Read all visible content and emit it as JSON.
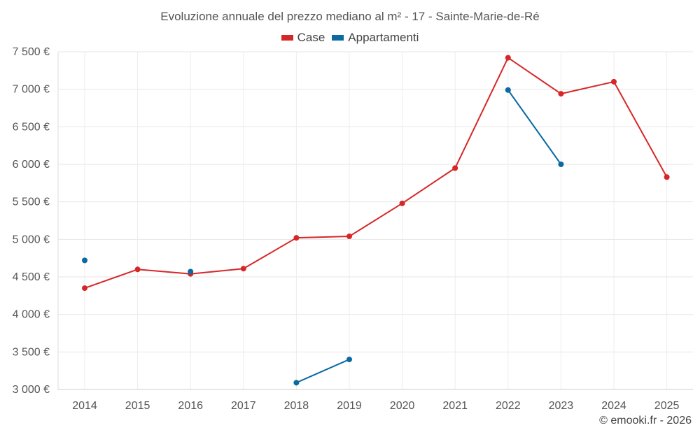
{
  "chart_data": {
    "type": "line",
    "title": "Evoluzione annuale del prezzo mediano al m² - 17 - Sainte-Marie-de-Ré",
    "categories": [
      "2014",
      "2015",
      "2016",
      "2017",
      "2018",
      "2019",
      "2020",
      "2021",
      "2022",
      "2023",
      "2024",
      "2025"
    ],
    "y_ticks": [
      3000,
      3500,
      4000,
      4500,
      5000,
      5500,
      6000,
      6500,
      7000,
      7500
    ],
    "y_tick_labels": [
      "3 000 €",
      "3 500 €",
      "4 000 €",
      "4 500 €",
      "5 000 €",
      "5 500 €",
      "6 000 €",
      "6 500 €",
      "7 000 €",
      "7 500 €"
    ],
    "ylim": [
      3000,
      7500
    ],
    "grid": true,
    "legend_position": "top-center",
    "series": [
      {
        "name": "Case",
        "color": "#d62728",
        "values": [
          4350,
          4600,
          4540,
          4610,
          5020,
          5040,
          5480,
          5950,
          7420,
          6940,
          7100,
          5830
        ]
      },
      {
        "name": "Appartamenti",
        "color": "#0a6aa1",
        "values": [
          4720,
          null,
          4570,
          null,
          3090,
          3400,
          null,
          null,
          6990,
          6000,
          null,
          null
        ]
      }
    ]
  },
  "footer": {
    "copyright": "© emooki.fr - 2026"
  }
}
